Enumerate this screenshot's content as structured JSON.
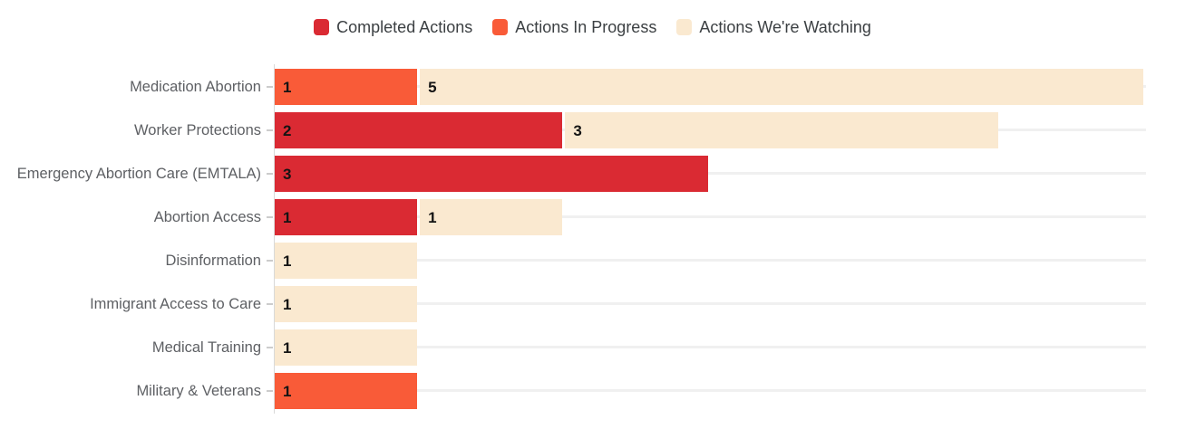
{
  "chart_data": {
    "type": "bar",
    "orientation": "horizontal",
    "stacked": true,
    "title": "",
    "xlabel": "",
    "ylabel": "",
    "xlim": [
      0,
      6
    ],
    "legend_position": "top",
    "value_label_placement": "inside-start",
    "grid": "light horizontal line at each row center, behind bars",
    "categories": [
      "Medication Abortion",
      "Worker Protections",
      "Emergency Abortion Care (EMTALA)",
      "Abortion Access",
      "Disinformation",
      "Immigrant Access to Care",
      "Medical Training",
      "Military & Veterans"
    ],
    "series": [
      {
        "name": "Completed Actions",
        "color": "#da2a33",
        "values": [
          0,
          2,
          3,
          1,
          0,
          0,
          0,
          0
        ]
      },
      {
        "name": "Actions In Progress",
        "color": "#f95b38",
        "values": [
          1,
          0,
          0,
          0,
          0,
          0,
          0,
          1
        ]
      },
      {
        "name": "Actions We're Watching",
        "color": "#fae9d0",
        "values": [
          5,
          3,
          0,
          1,
          1,
          1,
          1,
          0
        ]
      }
    ],
    "category_totals": [
      6,
      5,
      3,
      2,
      1,
      1,
      1,
      1
    ]
  },
  "colors": {
    "background": "#ffffff",
    "axis_line": "#d9d9d9",
    "tick_mark": "#cccccc",
    "gridline": "#f0f0f0",
    "category_label": "#5e6064",
    "legend_text": "#3c4043",
    "value_label": "#141414"
  }
}
